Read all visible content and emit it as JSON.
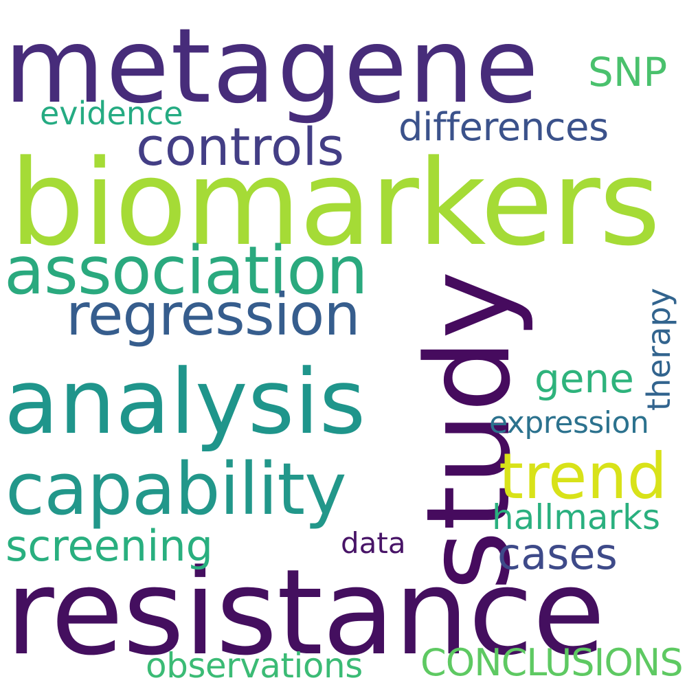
{
  "words": [
    {
      "text": "metagene",
      "color": "#472c7a"
    },
    {
      "text": "biomarkers",
      "color": "#a5db36"
    },
    {
      "text": "resistance",
      "color": "#440f5f"
    },
    {
      "text": "study",
      "color": "#460b5e"
    },
    {
      "text": "analysis",
      "color": "#1f958b"
    },
    {
      "text": "association",
      "color": "#2aa97e"
    },
    {
      "text": "capability",
      "color": "#22978a"
    },
    {
      "text": "regression",
      "color": "#365d8d"
    },
    {
      "text": "controls",
      "color": "#433e85"
    },
    {
      "text": "differences",
      "color": "#3b528b"
    },
    {
      "text": "trend",
      "color": "#d8e219"
    },
    {
      "text": "SNP",
      "color": "#4ac16d"
    },
    {
      "text": "evidence",
      "color": "#25ab82"
    },
    {
      "text": "gene",
      "color": "#2eb37c"
    },
    {
      "text": "therapy",
      "color": "#32648e"
    },
    {
      "text": "expression",
      "color": "#2c728e"
    },
    {
      "text": "hallmarks",
      "color": "#2ab07f"
    },
    {
      "text": "screening",
      "color": "#29af7f"
    },
    {
      "text": "cases",
      "color": "#3e4a89"
    },
    {
      "text": "data",
      "color": "#481467"
    },
    {
      "text": "observations",
      "color": "#3bbb75"
    },
    {
      "text": "CONCLUSIONS",
      "color": "#5ec962"
    }
  ]
}
